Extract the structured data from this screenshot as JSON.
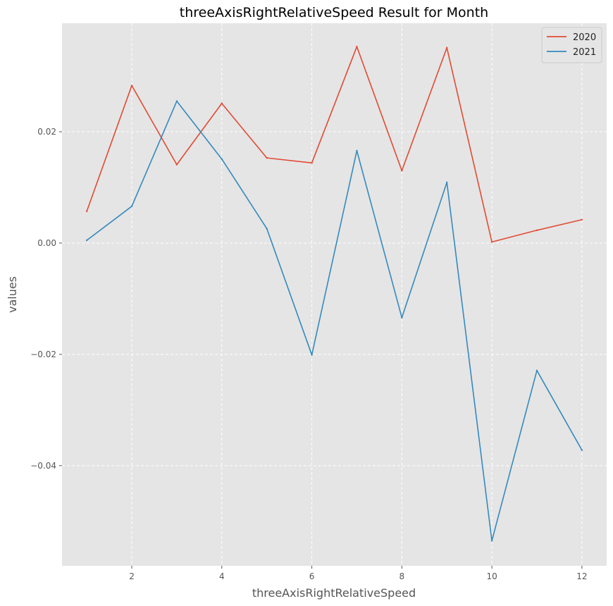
{
  "chart_data": {
    "type": "line",
    "title": "threeAxisRightRelativeSpeed Result for Month",
    "xlabel": "threeAxisRightRelativeSpeed",
    "ylabel": "values",
    "x": [
      1,
      2,
      3,
      4,
      5,
      6,
      7,
      8,
      9,
      10,
      11,
      12
    ],
    "xlim": [
      0.45,
      12.55
    ],
    "ylim": [
      -0.058,
      0.0395
    ],
    "xticks": [
      2,
      4,
      6,
      8,
      10,
      12
    ],
    "xtick_labels": [
      "2",
      "4",
      "6",
      "8",
      "10",
      "12"
    ],
    "yticks": [
      0.02,
      0.0,
      -0.02,
      -0.04
    ],
    "ytick_labels": [
      "0.02",
      "0.00",
      "−0.02",
      "−0.04"
    ],
    "grid": true,
    "legend_position": "top-right",
    "series": [
      {
        "name": "2020",
        "color": "#e24a33",
        "values": [
          0.0057,
          0.0283,
          0.0141,
          0.0251,
          0.0153,
          0.0144,
          0.0353,
          0.013,
          0.0351,
          0.0002,
          0.0023,
          0.0042
        ]
      },
      {
        "name": "2021",
        "color": "#348abd",
        "values": [
          0.0005,
          0.0066,
          0.0255,
          0.0151,
          0.0026,
          -0.0201,
          0.0166,
          -0.0134,
          0.0109,
          -0.0535,
          -0.0229,
          -0.0372
        ]
      }
    ]
  }
}
